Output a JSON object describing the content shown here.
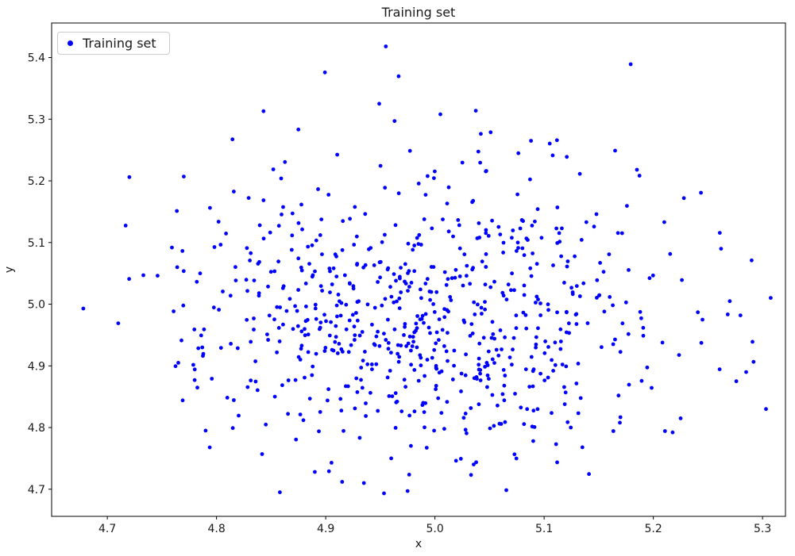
{
  "window": {
    "title": "Training set"
  },
  "chart_data": {
    "type": "scatter",
    "title": "Training set",
    "xlabel": "x",
    "ylabel": "y",
    "xlim": [
      4.649,
      5.321
    ],
    "ylim": [
      4.656,
      5.456
    ],
    "grid": false,
    "xticks": {
      "values": [
        4.7,
        4.8,
        4.9,
        5.0,
        5.1,
        5.2,
        5.3
      ],
      "labels": [
        "4.7",
        "4.8",
        "4.9",
        "5.0",
        "5.1",
        "5.2",
        "5.3"
      ]
    },
    "yticks": {
      "values": [
        4.7,
        4.8,
        4.9,
        5.0,
        5.1,
        5.2,
        5.3,
        5.4
      ],
      "labels": [
        "4.7",
        "4.8",
        "4.9",
        "5.0",
        "5.1",
        "5.2",
        "5.3",
        "5.4"
      ]
    },
    "legend": {
      "position": "upper left",
      "entries": [
        {
          "label": "Training set",
          "marker": "dot",
          "color": "#0000ff"
        }
      ]
    },
    "series": [
      {
        "name": "Training set",
        "color": "#0000ff",
        "marker": "point",
        "marker_radius_px": 2.4,
        "distribution": {
          "kind": "gaussian-cloud",
          "n": 730,
          "mean": [
            4.99,
            4.99
          ],
          "std": [
            0.105,
            0.118
          ],
          "seed": 7
        },
        "notable_points": [
          [
            4.955,
            5.418
          ],
          [
            4.963,
            5.297
          ],
          [
            5.005,
            5.308
          ],
          [
            4.843,
            5.313
          ],
          [
            4.678,
            4.993
          ],
          [
            4.71,
            4.969
          ],
          [
            4.733,
            5.047
          ],
          [
            4.72,
            5.041
          ],
          [
            4.764,
            5.06
          ],
          [
            4.77,
            5.207
          ],
          [
            4.785,
            5.05
          ],
          [
            4.765,
            4.905
          ],
          [
            4.78,
            4.877
          ],
          [
            4.787,
            4.93
          ],
          [
            4.79,
            4.795
          ],
          [
            5.29,
            5.071
          ],
          [
            5.262,
            5.09
          ],
          [
            5.27,
            5.005
          ],
          [
            5.276,
            4.875
          ],
          [
            5.285,
            4.89
          ],
          [
            5.245,
            4.975
          ],
          [
            5.228,
            5.172
          ],
          [
            5.21,
            5.133
          ],
          [
            5.185,
            5.218
          ],
          [
            5.165,
            5.249
          ],
          [
            5.088,
            5.265
          ],
          [
            4.858,
            4.695
          ],
          [
            4.975,
            4.697
          ],
          [
            4.915,
            4.712
          ],
          [
            4.935,
            4.71
          ],
          [
            4.96,
            4.75
          ],
          [
            4.89,
            4.728
          ],
          [
            5.135,
            4.768
          ],
          [
            5.09,
            4.778
          ],
          [
            5.225,
            4.815
          ]
        ]
      }
    ]
  }
}
